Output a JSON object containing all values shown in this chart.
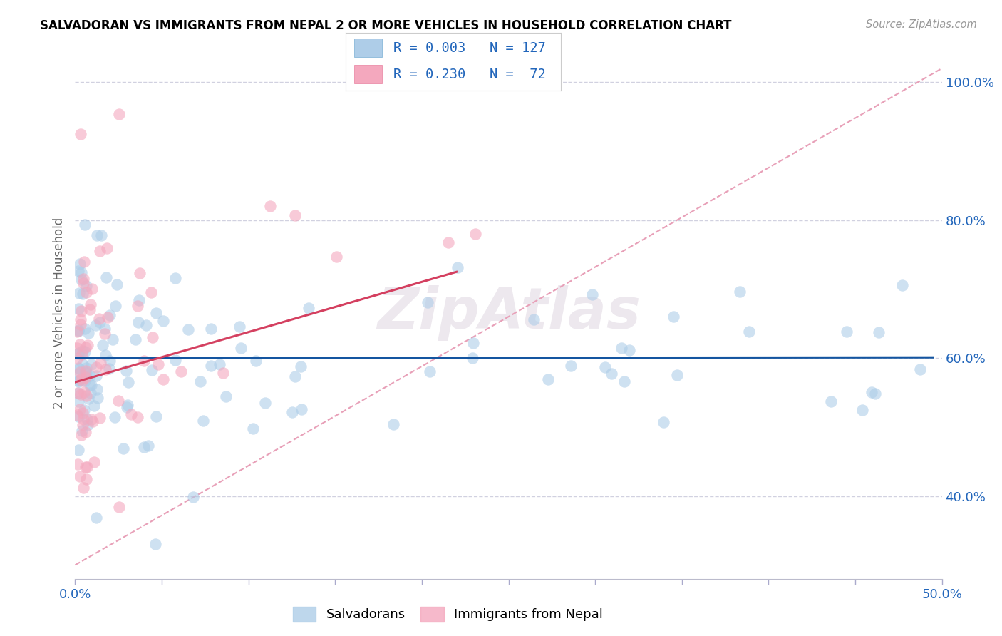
{
  "title": "SALVADORAN VS IMMIGRANTS FROM NEPAL 2 OR MORE VEHICLES IN HOUSEHOLD CORRELATION CHART",
  "source": "Source: ZipAtlas.com",
  "ylabel": "2 or more Vehicles in Household",
  "xlim": [
    0.0,
    0.5
  ],
  "ylim": [
    0.28,
    1.05
  ],
  "xticks": [
    0.0,
    0.05,
    0.1,
    0.15,
    0.2,
    0.25,
    0.3,
    0.35,
    0.4,
    0.45,
    0.5
  ],
  "xticklabels": [
    "0.0%",
    "",
    "",
    "",
    "",
    "",
    "",
    "",
    "",
    "",
    "50.0%"
  ],
  "yticks": [
    0.4,
    0.6,
    0.8,
    1.0
  ],
  "yticklabels": [
    "40.0%",
    "60.0%",
    "80.0%",
    "100.0%"
  ],
  "blue_fill": "#aecde8",
  "blue_edge": "#7aafd4",
  "pink_fill": "#f4a8be",
  "pink_edge": "#e880a0",
  "blue_line_color": "#1455a0",
  "pink_line_color": "#d44060",
  "diag_color": "#e8a0b8",
  "grid_color": "#ccccdd",
  "tick_color": "#aaaacc",
  "label_color": "#2266bb",
  "n_blue": 127,
  "n_pink": 72,
  "blue_seed": 15,
  "pink_seed": 25,
  "watermark": "ZipAtlas",
  "watermark_color": "#ede8ee"
}
